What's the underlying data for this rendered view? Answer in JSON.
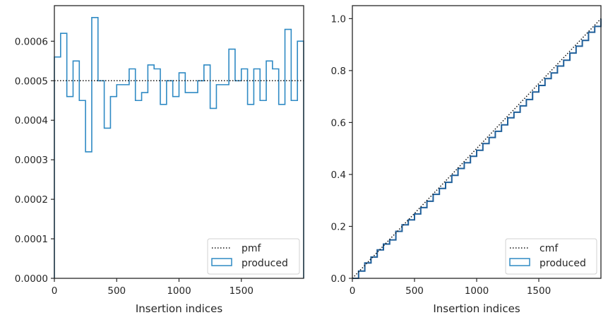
{
  "colors": {
    "produced": "#2f8ac4",
    "cmf_step": "#1f5f9a",
    "reference": "#111111",
    "axes": "#262626"
  },
  "chart_data": [
    {
      "type": "histogram",
      "xlabel": "Insertion indices",
      "ylabel": "",
      "xlim": [
        0,
        2000
      ],
      "ylim": [
        0,
        0.00069
      ],
      "xticks": [
        0,
        500,
        1000,
        1500
      ],
      "xtick_labels": [
        "0",
        "500",
        "1000",
        "1500"
      ],
      "yticks": [
        0,
        0.0001,
        0.0002,
        0.0003,
        0.0004,
        0.0005,
        0.0006
      ],
      "ytick_labels": [
        "0.0000",
        "0.0001",
        "0.0002",
        "0.0003",
        "0.0004",
        "0.0005",
        "0.0006"
      ],
      "bin_width": 50,
      "bin_edges_start": 0,
      "series": [
        {
          "name": "pmf",
          "style": "dotted",
          "values": [
            0.0005
          ]
        },
        {
          "name": "produced",
          "style": "step",
          "values": [
            0.00056,
            0.00062,
            0.00046,
            0.00055,
            0.00045,
            0.00032,
            0.00066,
            0.0005,
            0.00038,
            0.00046,
            0.00049,
            0.00049,
            0.00053,
            0.00045,
            0.00047,
            0.00054,
            0.00053,
            0.00044,
            0.0005,
            0.00046,
            0.00052,
            0.00047,
            0.00047,
            0.0005,
            0.00054,
            0.00043,
            0.00049,
            0.00049,
            0.00058,
            0.0005,
            0.00053,
            0.00044,
            0.00053,
            0.00045,
            0.00055,
            0.00053,
            0.00044,
            0.00063,
            0.00045,
            0.0006
          ]
        }
      ],
      "legend": {
        "placement": "lower-right",
        "entries": [
          "pmf",
          "produced"
        ]
      }
    },
    {
      "type": "line",
      "xlabel": "Insertion indices",
      "ylabel": "",
      "xlim": [
        0,
        2000
      ],
      "ylim": [
        0,
        1.05
      ],
      "xticks": [
        0,
        500,
        1000,
        1500
      ],
      "xtick_labels": [
        "0",
        "500",
        "1000",
        "1500"
      ],
      "yticks": [
        0,
        0.2,
        0.4,
        0.6,
        0.8,
        1.0
      ],
      "ytick_labels": [
        "0.0",
        "0.2",
        "0.4",
        "0.6",
        "0.8",
        "1.0"
      ],
      "series": [
        {
          "name": "cmf",
          "style": "dotted",
          "x": [
            0,
            2000
          ],
          "y": [
            0,
            1.0
          ]
        },
        {
          "name": "produced",
          "style": "step",
          "description_source": "cumulative sum of left-panel produced values times bin width",
          "x": [
            0,
            50,
            100,
            150,
            200,
            250,
            300,
            350,
            400,
            450,
            500,
            550,
            600,
            650,
            700,
            750,
            800,
            850,
            900,
            950,
            1000,
            1050,
            1100,
            1150,
            1200,
            1250,
            1300,
            1350,
            1400,
            1450,
            1500,
            1550,
            1600,
            1650,
            1700,
            1750,
            1800,
            1850,
            1900,
            1950,
            2000
          ],
          "y": [
            0,
            0.028,
            0.059,
            0.082,
            0.1095,
            0.132,
            0.148,
            0.181,
            0.206,
            0.225,
            0.248,
            0.2725,
            0.297,
            0.3235,
            0.346,
            0.3695,
            0.3965,
            0.423,
            0.445,
            0.47,
            0.493,
            0.519,
            0.5425,
            0.566,
            0.591,
            0.618,
            0.6395,
            0.664,
            0.6885,
            0.7175,
            0.7425,
            0.769,
            0.791,
            0.8175,
            0.84,
            0.8675,
            0.894,
            0.916,
            0.9475,
            0.97,
            1.0
          ]
        }
      ],
      "legend": {
        "placement": "lower-right",
        "entries": [
          "cmf",
          "produced"
        ]
      }
    }
  ]
}
